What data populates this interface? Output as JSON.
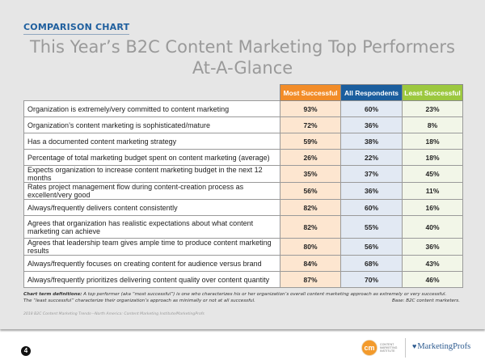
{
  "kicker": "COMPARISON CHART",
  "title_line1": "This Year’s B2C Content Marketing Top Performers",
  "title_line2": "At-A-Glance",
  "colors": {
    "most_header": "#f28c28",
    "most_cell": "#fde6d0",
    "all_header": "#1b5e9e",
    "all_cell": "#e2e9f3",
    "least_header": "#9cc83f",
    "least_cell": "#f2f6e8"
  },
  "chart_data": {
    "type": "table",
    "title": "This Year’s B2C Content Marketing Top Performers At-A-Glance",
    "columns": [
      "Most Successful",
      "All Respondents",
      "Least Successful"
    ],
    "rows": [
      {
        "label": "Organization is extremely/very committed to content marketing",
        "values": [
          "93%",
          "60%",
          "23%"
        ]
      },
      {
        "label": "Organization’s content marketing is sophisticated/mature",
        "values": [
          "72%",
          "36%",
          "8%"
        ]
      },
      {
        "label": "Has a documented content marketing strategy",
        "values": [
          "59%",
          "38%",
          "18%"
        ]
      },
      {
        "label": "Percentage of total marketing budget spent on content marketing (average)",
        "values": [
          "26%",
          "22%",
          "18%"
        ]
      },
      {
        "label": "Expects organization to increase content marketing budget in the next 12 months",
        "values": [
          "35%",
          "37%",
          "45%"
        ]
      },
      {
        "label": "Rates project management flow during content-creation process as excellent/very good",
        "values": [
          "56%",
          "36%",
          "11%"
        ]
      },
      {
        "label": "Always/frequently delivers content consistently",
        "values": [
          "82%",
          "60%",
          "16%"
        ]
      },
      {
        "label": "Agrees that organization has realistic expectations about what content marketing can achieve",
        "values": [
          "82%",
          "55%",
          "40%"
        ]
      },
      {
        "label": "Agrees that leadership team gives ample time to produce content marketing results",
        "values": [
          "80%",
          "56%",
          "36%"
        ]
      },
      {
        "label": "Always/frequently focuses on creating content for audience versus brand",
        "values": [
          "84%",
          "68%",
          "43%"
        ]
      },
      {
        "label": "Always/frequently prioritizes delivering content quality over content quantity",
        "values": [
          "87%",
          "70%",
          "46%"
        ]
      }
    ]
  },
  "definitions": {
    "lead": "Chart term definitions:",
    "line1": " A top performer (aka “most successful”) is one who characterizes his or her organization’s overall content marketing approach as extremely or very successful.",
    "line2": "The “least successful” characterize their organization’s approach as minimally or not at all successful.",
    "base": "Base: B2C content marketers."
  },
  "source": "2018 B2C Content Marketing Trends—North America: Content Marketing Institute/MarketingProfs",
  "page_number": "4",
  "logos": {
    "cmi_mark": "cm",
    "cmi_text_1": "Content",
    "cmi_text_2": "Marketing",
    "cmi_text_3": "Institute",
    "mp_text": "MarketingProfs"
  }
}
